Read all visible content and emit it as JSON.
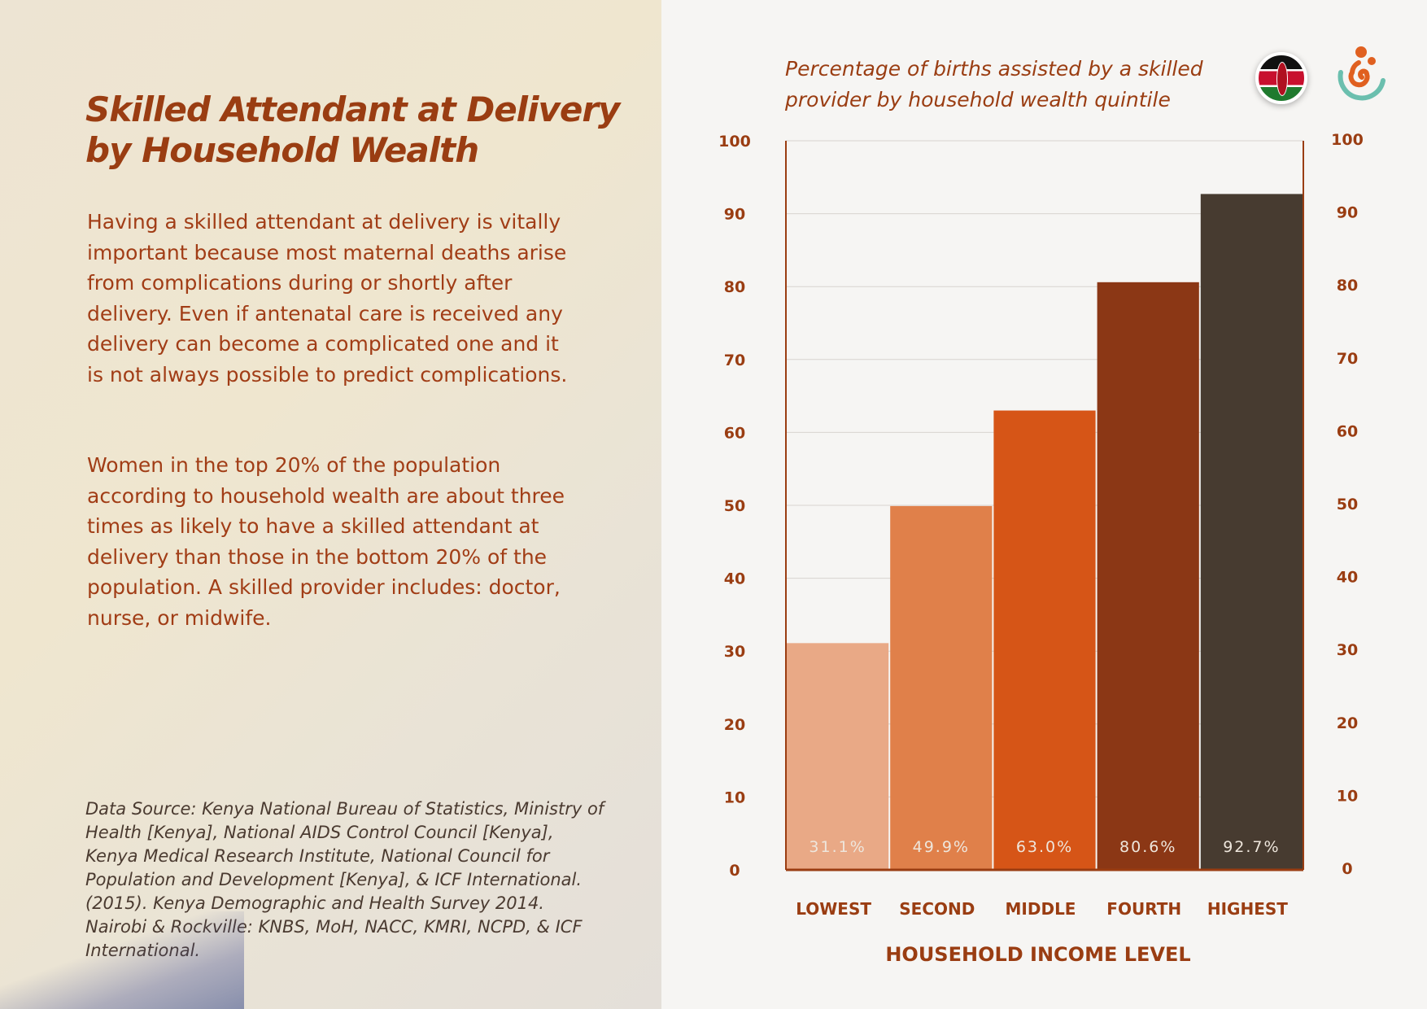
{
  "left_panel": {
    "heading_line1": "Skilled Attendant at Delivery",
    "heading_line2": "by Household Wealth",
    "paragraph1": "Having a skilled attendant at delivery is vitally important because most maternal deaths arise from complications during or shortly after delivery. Even if antenatal care is received any delivery can become a complicated one and it is not always possible to predict complications.",
    "paragraph2": "Women in the top 20% of the population according to household wealth are about three times as likely to have a skilled attendant at delivery than those in the bottom 20% of the population. A skilled provider includes: doctor, nurse, or midwife.",
    "source": "Data Source: Kenya National Bureau of Statistics, Ministry of Health [Kenya], National AIDS Control Council [Kenya], Kenya Medical Research Institute, National Council for Population and Development [Kenya], & ICF International. (2015). Kenya Demographic and Health Survey 2014. Nairobi & Rockville: KNBS, MoH, NACC, KMRI, NCPD, & ICF International."
  },
  "icons": [
    "kenya-flag-icon",
    "spiral-logo-icon"
  ],
  "chart_data": {
    "type": "bar",
    "title_line1": "Percentage of births assisted by a skilled",
    "title_line2": "provider by household wealth quintile",
    "categories": [
      "LOWEST",
      "SECOND",
      "MIDDLE",
      "FOURTH",
      "HIGHEST"
    ],
    "values": [
      31.1,
      49.9,
      63.0,
      80.6,
      92.7
    ],
    "data_labels": [
      "31.1%",
      "49.9%",
      "63.0%",
      "80.6%",
      "92.7%"
    ],
    "colors": [
      "#e9a986",
      "#e0804a",
      "#d65517",
      "#8b3715",
      "#473b30"
    ],
    "xlabel": "HOUSEHOLD  INCOME LEVEL",
    "ylabel": "",
    "ylim": [
      0,
      100
    ],
    "yticks": [
      "0",
      "10",
      "20",
      "30",
      "40",
      "50",
      "60",
      "70",
      "80",
      "90",
      "100"
    ],
    "grid": true,
    "dual_y_axis": true
  }
}
